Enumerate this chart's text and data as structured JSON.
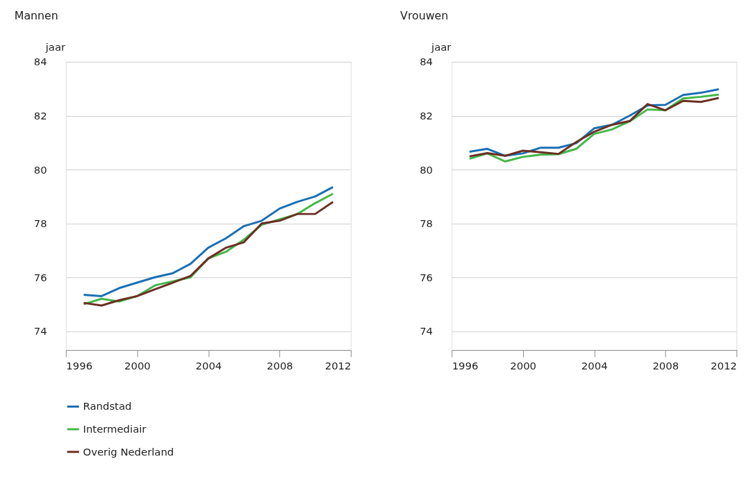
{
  "chart_data": [
    {
      "type": "line",
      "title": "Mannen",
      "ylabel": "jaar",
      "x": [
        1997,
        1998,
        1999,
        2000,
        2001,
        2002,
        2003,
        2004,
        2005,
        2006,
        2007,
        2008,
        2009,
        2010,
        2011
      ],
      "xlim": [
        1996,
        2012
      ],
      "xticks": [
        1996,
        2000,
        2004,
        2008,
        2012
      ],
      "ylim": [
        73.3,
        84
      ],
      "yticks": [
        74,
        76,
        78,
        80,
        82,
        84
      ],
      "grid": "y",
      "legend": "bottom",
      "line_style": "solid",
      "marker": "none",
      "series": [
        {
          "name": "Randstad",
          "color": "#1a6fb5",
          "values": [
            75.35,
            75.3,
            75.6,
            75.8,
            76.0,
            76.15,
            76.5,
            77.1,
            77.45,
            77.9,
            78.1,
            78.55,
            78.8,
            79.0,
            79.35
          ]
        },
        {
          "name": "Intermediair",
          "color": "#44b649",
          "values": [
            75.0,
            75.2,
            75.1,
            75.3,
            75.7,
            75.85,
            76.0,
            76.7,
            76.95,
            77.4,
            77.95,
            78.15,
            78.35,
            78.75,
            79.1
          ]
        },
        {
          "name": "Overig Nederland",
          "color": "#6b2f22",
          "values": [
            75.05,
            74.95,
            75.15,
            75.3,
            75.55,
            75.8,
            76.05,
            76.7,
            77.1,
            77.3,
            78.0,
            78.1,
            78.35,
            78.35,
            78.8
          ]
        }
      ]
    },
    {
      "type": "line",
      "title": "Vrouwen",
      "ylabel": "jaar",
      "x": [
        1997,
        1998,
        1999,
        2000,
        2001,
        2002,
        2003,
        2004,
        2005,
        2006,
        2007,
        2008,
        2009,
        2010,
        2011
      ],
      "xlim": [
        1996,
        2012
      ],
      "xticks": [
        1996,
        2000,
        2004,
        2008,
        2012
      ],
      "ylim": [
        73.3,
        84
      ],
      "yticks": [
        74,
        76,
        78,
        80,
        82,
        84
      ],
      "grid": "y",
      "legend": "bottom",
      "line_style": "solid",
      "marker": "none",
      "series": [
        {
          "name": "Randstad",
          "color": "#1a6fb5",
          "values": [
            80.66,
            80.77,
            80.51,
            80.6,
            80.81,
            80.81,
            80.98,
            81.53,
            81.66,
            82.0,
            82.38,
            82.4,
            82.77,
            82.85,
            82.98
          ]
        },
        {
          "name": "Intermediair",
          "color": "#44b649",
          "values": [
            80.4,
            80.6,
            80.3,
            80.47,
            80.55,
            80.57,
            80.77,
            81.32,
            81.49,
            81.79,
            82.23,
            82.2,
            82.64,
            82.7,
            82.78
          ]
        },
        {
          "name": "Overig Nederland",
          "color": "#6b2f22",
          "values": [
            80.49,
            80.61,
            80.51,
            80.7,
            80.64,
            80.58,
            81.02,
            81.4,
            81.66,
            81.8,
            82.43,
            82.2,
            82.55,
            82.51,
            82.66
          ]
        }
      ]
    }
  ]
}
